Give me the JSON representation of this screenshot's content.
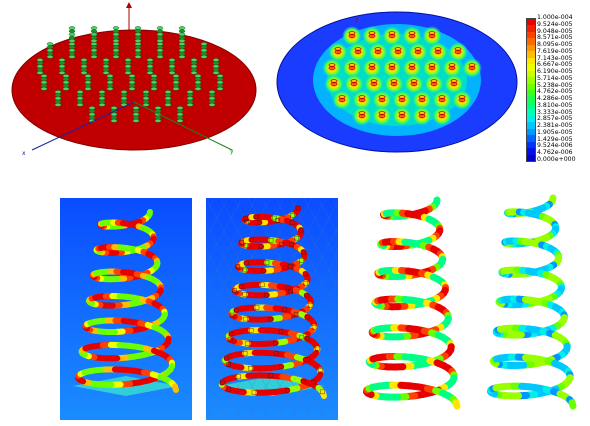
{
  "legend": {
    "labels": [
      "1.000e-004",
      "9.524e-005",
      "9.048e-005",
      "8.571e-005",
      "8.095e-005",
      "7.619e-005",
      "7.143e-005",
      "6.667e-005",
      "6.190e-005",
      "5.714e-005",
      "5.238e-005",
      "4.762e-005",
      "4.286e-005",
      "3.810e-005",
      "3.333e-005",
      "2.857e-005",
      "2.381e-005",
      "1.905e-005",
      "1.429e-005",
      "9.524e-006",
      "4.762e-006",
      "0.000e+000"
    ],
    "colors": [
      "#e60000",
      "#f22000",
      "#ff4000",
      "#ff6a00",
      "#ff9500",
      "#ffbf00",
      "#ffe600",
      "#f0ff00",
      "#c8ff00",
      "#9aff00",
      "#6cff00",
      "#3cff1e",
      "#1aff50",
      "#00ff86",
      "#00ffb8",
      "#00f0e6",
      "#00c8ff",
      "#0096ff",
      "#0064ff",
      "#0032ff",
      "#0010e6",
      "#0000c8"
    ]
  },
  "axes": {
    "x": "x",
    "y": "y",
    "z": "z"
  },
  "colors": {
    "plate_red": "#c00000",
    "spring_green": "#2ca02c",
    "field_blue": "#1a3cff"
  }
}
